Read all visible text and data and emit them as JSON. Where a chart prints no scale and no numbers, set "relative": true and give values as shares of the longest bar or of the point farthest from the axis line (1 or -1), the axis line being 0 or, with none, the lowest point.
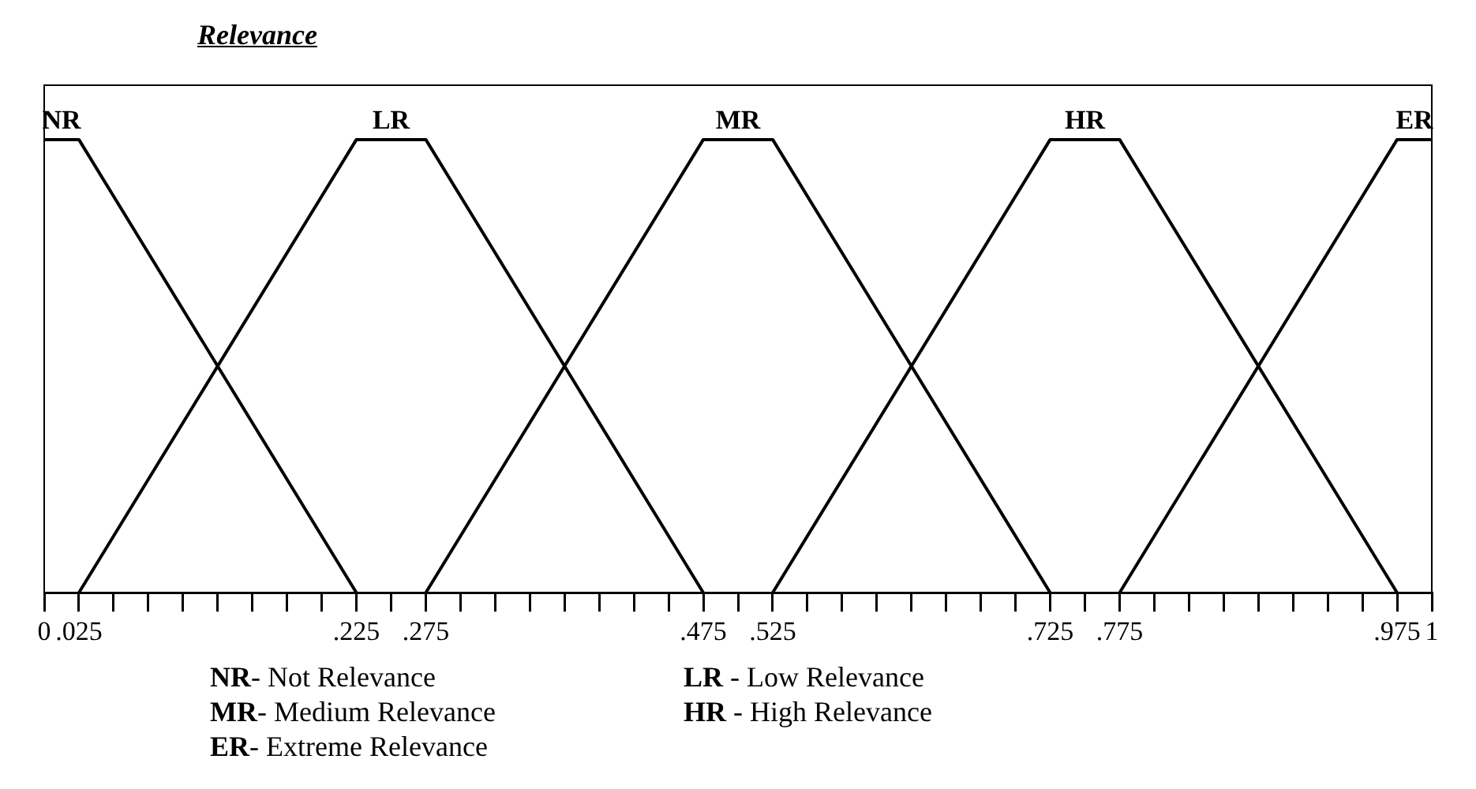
{
  "chart_data": {
    "type": "line",
    "title": "Relevance",
    "relative": true,
    "legend": false,
    "grid": false,
    "marker": "none",
    "line_style": "solid",
    "xlim": [
      0,
      1
    ],
    "xticks": [
      0,
      {
        "value": 0.025,
        "label": ".025"
      },
      {
        "value": 0.05,
        "label": null
      },
      {
        "value": 0.075,
        "label": null
      },
      {
        "value": 0.1,
        "label": null
      },
      {
        "value": 0.125,
        "label": null
      },
      {
        "value": 0.15,
        "label": null
      },
      {
        "value": 0.175,
        "label": null
      },
      {
        "value": 0.2,
        "label": null
      },
      {
        "value": 0.225,
        "label": ".225"
      },
      {
        "value": 0.25,
        "label": null
      },
      {
        "value": 0.275,
        "label": ".275"
      },
      {
        "value": 0.3,
        "label": null
      },
      {
        "value": 0.325,
        "label": null
      },
      {
        "value": 0.35,
        "label": null
      },
      {
        "value": 0.375,
        "label": null
      },
      {
        "value": 0.4,
        "label": null
      },
      {
        "value": 0.425,
        "label": null
      },
      {
        "value": 0.45,
        "label": null
      },
      {
        "value": 0.475,
        "label": ".475"
      },
      {
        "value": 0.5,
        "label": null
      },
      {
        "value": 0.525,
        "label": ".525"
      },
      {
        "value": 0.55,
        "label": null
      },
      {
        "value": 0.575,
        "label": null
      },
      {
        "value": 0.6,
        "label": null
      },
      {
        "value": 0.625,
        "label": null
      },
      {
        "value": 0.65,
        "label": null
      },
      {
        "value": 0.675,
        "label": null
      },
      {
        "value": 0.7,
        "label": null
      },
      {
        "value": 0.725,
        "label": ".725"
      },
      {
        "value": 0.75,
        "label": null
      },
      {
        "value": 0.775,
        "label": ".775"
      },
      {
        "value": 0.8,
        "label": null
      },
      {
        "value": 0.825,
        "label": null
      },
      {
        "value": 0.85,
        "label": null
      },
      {
        "value": 0.875,
        "label": null
      },
      {
        "value": 0.9,
        "label": null
      },
      {
        "value": 0.925,
        "label": null
      },
      {
        "value": 0.95,
        "label": null
      },
      {
        "value": 0.975,
        "label": ".975"
      },
      1
    ],
    "series": [
      {
        "name": "NR",
        "color": "#000000",
        "x": [
          0,
          0.025,
          0.225
        ],
        "values": [
          1,
          1,
          0
        ]
      },
      {
        "name": "LR",
        "color": "#000000",
        "x": [
          0.025,
          0.225,
          0.275,
          0.475
        ],
        "values": [
          0,
          1,
          1,
          0
        ]
      },
      {
        "name": "MR",
        "color": "#000000",
        "x": [
          0.275,
          0.475,
          0.525,
          0.725
        ],
        "values": [
          0,
          1,
          1,
          0
        ]
      },
      {
        "name": "HR",
        "color": "#000000",
        "x": [
          0.525,
          0.725,
          0.775,
          0.975
        ],
        "values": [
          0,
          1,
          1,
          0
        ]
      },
      {
        "name": "ER",
        "color": "#000000",
        "x": [
          0.775,
          0.975,
          1
        ],
        "values": [
          0,
          1,
          1
        ]
      }
    ],
    "annotations": [
      "NR- Not Relevance",
      "LR - Low Relevance",
      "MR- Medium Relevance",
      "HR - High Relevance",
      "ER- Extreme Relevance"
    ]
  }
}
